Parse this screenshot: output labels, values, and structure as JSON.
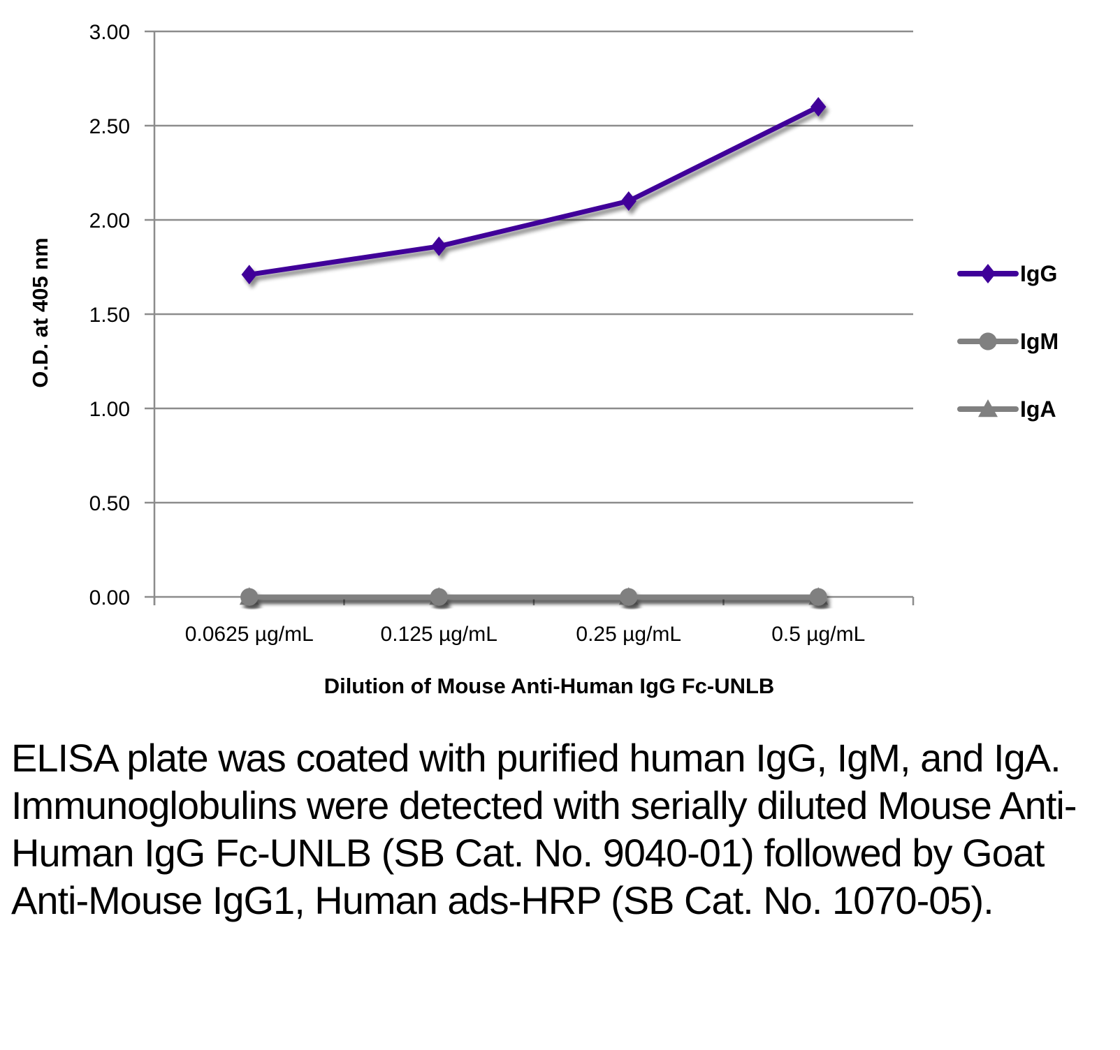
{
  "chart_data": {
    "type": "line",
    "title": "",
    "xlabel": "Dilution of Mouse Anti-Human IgG Fc-UNLB",
    "ylabel": "O.D. at 405 nm",
    "categories": [
      "0.0625 µg/mL",
      "0.125 µg/mL",
      "0.25 µg/mL",
      "0.5 µg/mL"
    ],
    "ylim": [
      0,
      3
    ],
    "yticks": [
      "0.00",
      "0.50",
      "1.00",
      "1.50",
      "2.00",
      "2.50",
      "3.00"
    ],
    "ytick_values": [
      0,
      0.5,
      1,
      1.5,
      2,
      2.5,
      3
    ],
    "grid": true,
    "legend_position": "right",
    "series": [
      {
        "name": "IgG",
        "marker": "diamond",
        "color": "#3f0099",
        "values": [
          1.71,
          1.86,
          2.1,
          2.6
        ]
      },
      {
        "name": "IgM",
        "marker": "circle",
        "color": "#808080",
        "values": [
          0.0,
          0.0,
          0.0,
          0.0
        ]
      },
      {
        "name": "IgA",
        "marker": "triangle",
        "color": "#808080",
        "values": [
          0.0,
          0.0,
          0.0,
          0.0
        ]
      }
    ]
  },
  "caption": "ELISA plate was coated with purified human IgG, IgM, and IgA.  Immunoglobulins were detected with serially diluted Mouse Anti-Human IgG Fc-UNLB (SB Cat. No. 9040-01) followed by Goat Anti-Mouse IgG1, Human ads-HRP (SB Cat. No. 1070-05)."
}
